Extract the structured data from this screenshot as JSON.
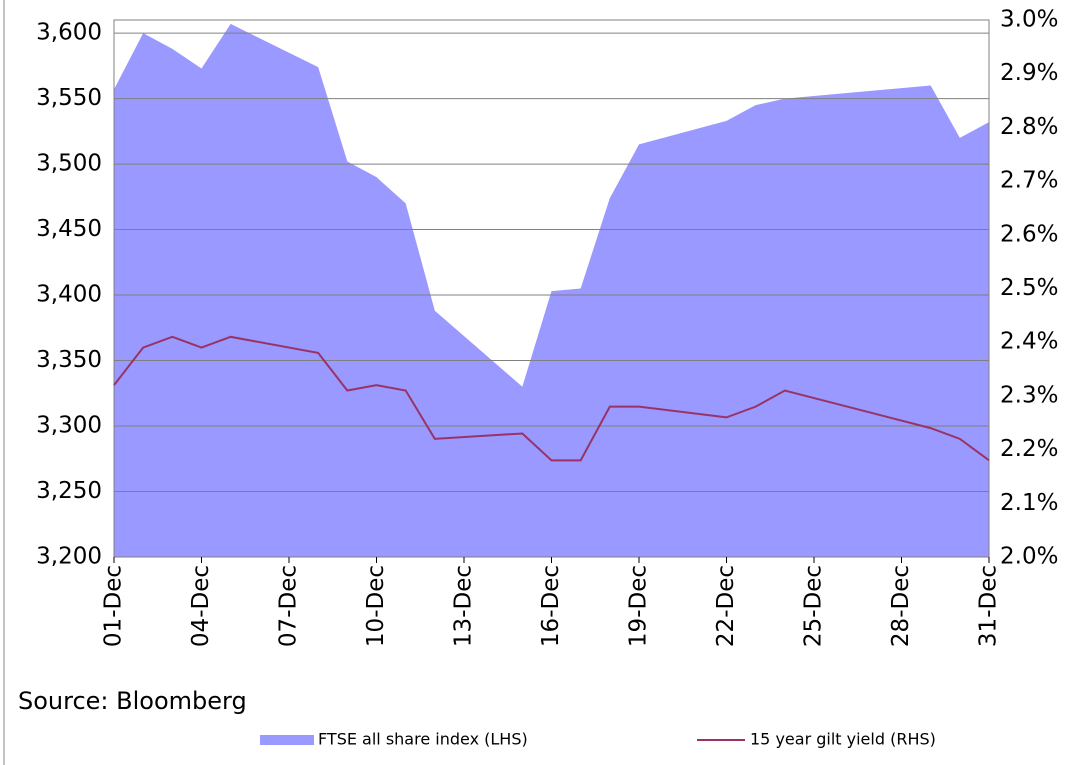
{
  "chart_data": {
    "type": "area_line",
    "x": [
      1,
      2,
      3,
      4,
      5,
      8,
      9,
      10,
      11,
      12,
      15,
      16,
      17,
      18,
      19,
      22,
      23,
      24,
      29,
      30,
      31
    ],
    "xlim": [
      1,
      31
    ],
    "xticks": [
      {
        "value": 1,
        "label": "01-Dec"
      },
      {
        "value": 4,
        "label": "04-Dec"
      },
      {
        "value": 7,
        "label": "07-Dec"
      },
      {
        "value": 10,
        "label": "10-Dec"
      },
      {
        "value": 13,
        "label": "13-Dec"
      },
      {
        "value": 16,
        "label": "16-Dec"
      },
      {
        "value": 19,
        "label": "19-Dec"
      },
      {
        "value": 22,
        "label": "22-Dec"
      },
      {
        "value": 25,
        "label": "25-Dec"
      },
      {
        "value": 28,
        "label": "28-Dec"
      },
      {
        "value": 31,
        "label": "31-Dec"
      }
    ],
    "series": [
      {
        "name": "FTSE all share index (LHS)",
        "color": "#9999ff",
        "kind": "area",
        "values": [
          3557,
          3600,
          3588,
          3573,
          3607,
          3574,
          3502,
          3490,
          3470,
          3388,
          3330,
          3403,
          3405,
          3474,
          3515,
          3533,
          3545,
          3550,
          3560,
          3520,
          3532
        ]
      },
      {
        "name": "15 year gilt yield (RHS)",
        "color": "#993366",
        "kind": "line",
        "axis": "y2",
        "values": [
          2.32,
          2.39,
          2.41,
          2.39,
          2.41,
          2.38,
          2.31,
          2.32,
          2.31,
          2.22,
          2.23,
          2.18,
          2.18,
          2.28,
          2.28,
          2.26,
          2.28,
          2.31,
          2.24,
          2.22,
          2.18
        ]
      }
    ],
    "ylim": [
      3200,
      3610
    ],
    "yticks": [
      {
        "value": 3200,
        "label": "3,200"
      },
      {
        "value": 3250,
        "label": "3,250"
      },
      {
        "value": 3300,
        "label": "3,300"
      },
      {
        "value": 3350,
        "label": "3,350"
      },
      {
        "value": 3400,
        "label": "3,400"
      },
      {
        "value": 3450,
        "label": "3,450"
      },
      {
        "value": 3500,
        "label": "3,500"
      },
      {
        "value": 3550,
        "label": "3,550"
      },
      {
        "value": 3600,
        "label": "3,600"
      }
    ],
    "y2lim": [
      2.0,
      3.0
    ],
    "y2ticks": [
      {
        "value": 2.0,
        "label": "2.0%"
      },
      {
        "value": 2.1,
        "label": "2.1%"
      },
      {
        "value": 2.2,
        "label": "2.2%"
      },
      {
        "value": 2.3,
        "label": "2.3%"
      },
      {
        "value": 2.4,
        "label": "2.4%"
      },
      {
        "value": 2.5,
        "label": "2.5%"
      },
      {
        "value": 2.6,
        "label": "2.6%"
      },
      {
        "value": 2.7,
        "label": "2.7%"
      },
      {
        "value": 2.8,
        "label": "2.8%"
      },
      {
        "value": 2.9,
        "label": "2.9%"
      },
      {
        "value": 3.0,
        "label": "3.0%"
      }
    ],
    "grid": true,
    "source": "Source: Bloomberg"
  }
}
